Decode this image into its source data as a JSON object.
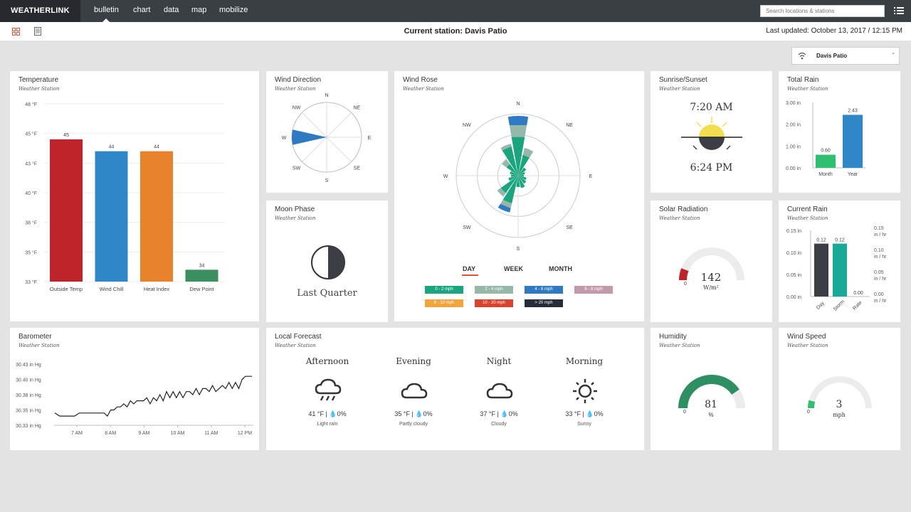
{
  "nav": {
    "brand": "WEATHERLINK",
    "links": [
      "bulletin",
      "chart",
      "data",
      "map",
      "mobilize"
    ],
    "search_placeholder": "Search locations & stations"
  },
  "header": {
    "station_title": "Current station: Davis Patio",
    "last_updated": "Last updated: October 13, 2017 / 12:15 PM",
    "station_select": "Davis Patio"
  },
  "temperature": {
    "title": "Temperature",
    "subtitle": "Weather Station",
    "chart_data": {
      "type": "bar",
      "categories": [
        "Outside Temp",
        "Wind Chill",
        "Heat Index",
        "Dew Point"
      ],
      "values": [
        45,
        44,
        44,
        34
      ],
      "value_labels": [
        "45",
        "44",
        "44",
        "34"
      ],
      "colors": [
        "#c0242b",
        "#2f87c8",
        "#e8822a",
        "#3a8f5e"
      ],
      "yticks": [
        "48 °F",
        "45 °F",
        "43 °F",
        "40 °F",
        "38 °F",
        "35 °F",
        "33 °F"
      ],
      "ylim": [
        33,
        48
      ],
      "grid": true
    }
  },
  "wind_direction": {
    "title": "Wind Direction",
    "subtitle": "Weather Station",
    "labels": [
      "N",
      "NE",
      "E",
      "SE",
      "S",
      "SW",
      "W",
      "NW"
    ],
    "direction_deg": 270
  },
  "moon": {
    "title": "Moon Phase",
    "subtitle": "Weather Station",
    "phase": "Last Quarter"
  },
  "wind_rose": {
    "title": "Wind Rose",
    "subtitle": "Weather Station",
    "labels": [
      "N",
      "NE",
      "E",
      "SE",
      "S",
      "SW",
      "W",
      "NW"
    ],
    "tabs": [
      "DAY",
      "WEEK",
      "MONTH"
    ],
    "legend": [
      {
        "label": "0 - 2 mph",
        "color": "#1aa57e"
      },
      {
        "label": "2 - 4 mph",
        "color": "#95b8a9"
      },
      {
        "label": "4 - 6 mph",
        "color": "#2f7ac2"
      },
      {
        "label": "6 - 8 mph",
        "color": "#c39aab"
      },
      {
        "label": "8 - 10 mph",
        "color": "#f0a43a"
      },
      {
        "label": "10 - 20 mph",
        "color": "#d9432d"
      },
      {
        "label": "> 20 mph",
        "color": "#242d39"
      }
    ]
  },
  "sunrise": {
    "title": "Sunrise/Sunset",
    "subtitle": "Weather Station",
    "sunrise": "7:20 AM",
    "sunset": "6:24 PM"
  },
  "total_rain": {
    "title": "Total Rain",
    "subtitle": "Weather Station",
    "chart_data": {
      "type": "bar",
      "categories": [
        "Month",
        "Year"
      ],
      "values": [
        0.6,
        2.43
      ],
      "value_labels": [
        "0.60",
        "2.43"
      ],
      "colors": [
        "#2fbf71",
        "#2f87c8"
      ],
      "yticks": [
        "3.00 in",
        "2.00 in",
        "1.00 in",
        "0.00 in"
      ],
      "ylim": [
        0,
        3
      ]
    }
  },
  "solar": {
    "title": "Solar Radiation",
    "subtitle": "Weather Station",
    "value": "142",
    "unit": "W/m²",
    "min": "0",
    "fraction": 0.12,
    "color": "#c0242b"
  },
  "current_rain": {
    "title": "Current Rain",
    "subtitle": "Weather Station",
    "chart_data": {
      "type": "bar",
      "categories": [
        "Day",
        "Storm",
        "Rate"
      ],
      "values": [
        0.12,
        0.12,
        0.0
      ],
      "value_labels": [
        "0.12",
        "0.12",
        "0.00"
      ],
      "colors": [
        "#3b3f45",
        "#18a999",
        "#18a999"
      ],
      "yticks_left": [
        "0.15 in",
        "0.10 in",
        "0.05 in",
        "0.00 in"
      ],
      "yticks_right": [
        "0.15",
        "0.10",
        "0.05",
        "0.00"
      ],
      "right_unit": "in / hr",
      "ylim": [
        0,
        0.15
      ]
    }
  },
  "barometer": {
    "title": "Barometer",
    "subtitle": "Weather Station",
    "chart_data": {
      "type": "line",
      "yticks": [
        "30.43 in Hg",
        "30.40 in Hg",
        "30.38 in Hg",
        "30.35 in Hg",
        "30.33 in Hg"
      ],
      "xticks": [
        "7 AM",
        "8 AM",
        "9 AM",
        "10 AM",
        "11 AM",
        "12 PM"
      ],
      "ylim": [
        30.33,
        30.43
      ],
      "x": [
        0,
        0.3,
        0.6,
        0.9,
        1.2,
        1.5,
        1.8,
        2.1,
        2.4,
        2.6,
        2.8,
        3.0,
        3.2,
        3.4,
        3.6,
        3.8,
        4.0,
        4.2,
        4.4,
        4.6,
        4.8,
        5.0,
        5.2,
        5.4,
        5.6,
        5.8,
        6.0,
        6.2,
        6.4,
        6.6,
        6.8,
        7.0,
        7.2,
        7.4,
        7.6,
        7.8,
        8.0,
        8.2,
        8.4,
        8.6,
        8.8,
        9.0,
        9.2,
        9.4,
        9.6,
        9.8,
        10.0,
        10.2,
        10.4,
        10.6,
        10.8,
        11.0,
        11.2,
        11.4,
        11.6,
        11.8,
        12.0
      ],
      "y": [
        30.35,
        30.345,
        30.345,
        30.345,
        30.345,
        30.35,
        30.35,
        30.35,
        30.35,
        30.35,
        30.35,
        30.35,
        30.345,
        30.355,
        30.355,
        30.36,
        30.36,
        30.365,
        30.36,
        30.37,
        30.365,
        30.37,
        30.37,
        30.37,
        30.375,
        30.365,
        30.375,
        30.37,
        30.38,
        30.37,
        30.385,
        30.375,
        30.385,
        30.375,
        30.385,
        30.375,
        30.385,
        30.385,
        30.38,
        30.39,
        30.38,
        30.39,
        30.39,
        30.385,
        30.395,
        30.385,
        30.39,
        30.395,
        30.39,
        30.4,
        30.39,
        30.4,
        30.39,
        30.405,
        30.41,
        30.41,
        30.41
      ]
    }
  },
  "forecast": {
    "title": "Local Forecast",
    "subtitle": "Weather Station",
    "periods": [
      {
        "name": "Afternoon",
        "temp": "41 °F | ",
        "precip": "0%",
        "cond": "Light rain",
        "icon": "rain-cloud-icon"
      },
      {
        "name": "Evening",
        "temp": "35 °F | ",
        "precip": "0%",
        "cond": "Partly cloudy",
        "icon": "cloud-icon"
      },
      {
        "name": "Night",
        "temp": "37 °F | ",
        "precip": "0%",
        "cond": "Cloudy",
        "icon": "cloud-icon"
      },
      {
        "name": "Morning",
        "temp": "33 °F | ",
        "precip": "0%",
        "cond": "Sunny",
        "icon": "sun-icon"
      }
    ]
  },
  "humidity": {
    "title": "Humidity",
    "subtitle": "Weather Station",
    "value": "81",
    "unit": "%",
    "min": "0",
    "fraction": 0.81,
    "color": "#2e8f63"
  },
  "wind_speed": {
    "title": "Wind Speed",
    "subtitle": "Weather Station",
    "value": "3",
    "unit": "mph",
    "min": "0",
    "fraction": 0.08,
    "color": "#2fbf71"
  }
}
